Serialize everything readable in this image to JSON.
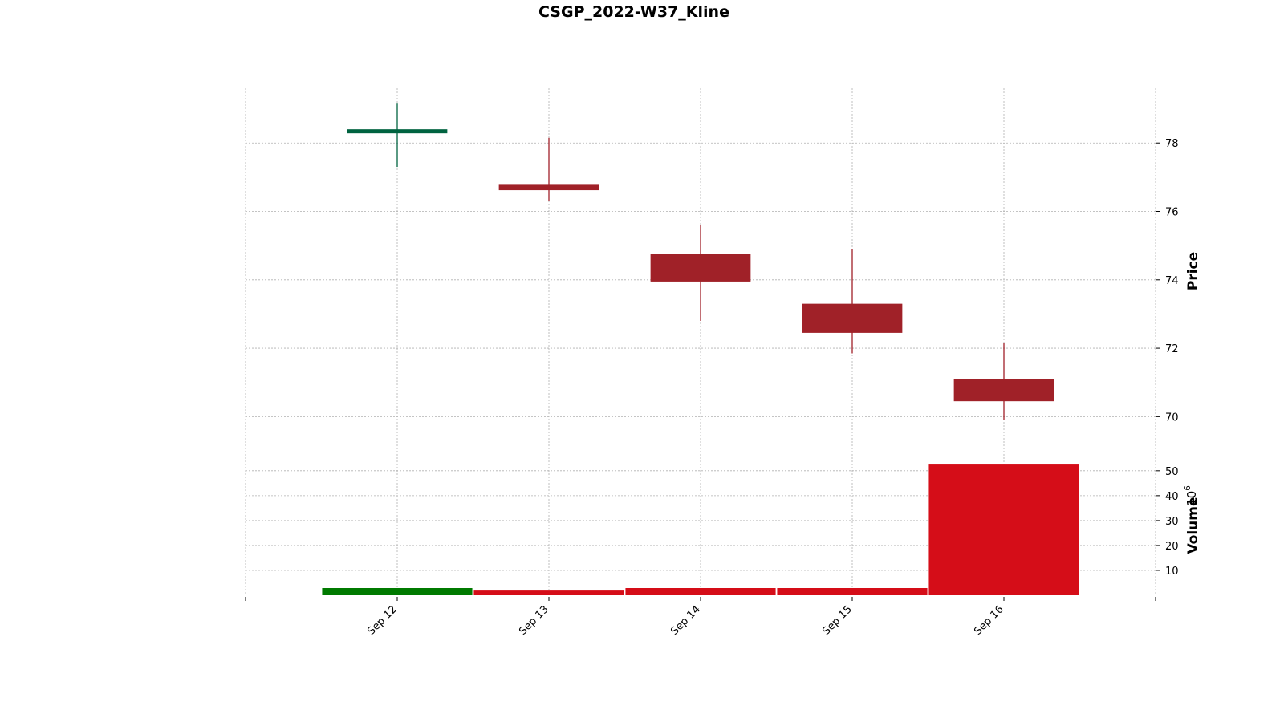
{
  "chart_data": {
    "type": "candlestick",
    "title": "CSGP_2022-W37_Kline",
    "categories": [
      "Sep 12",
      "Sep 13",
      "Sep 14",
      "Sep 15",
      "Sep 16"
    ],
    "ohlc": [
      {
        "date": "Sep 12",
        "open": 78.35,
        "high": 79.15,
        "low": 77.3,
        "close": 78.4
      },
      {
        "date": "Sep 13",
        "open": 76.8,
        "high": 78.15,
        "low": 76.3,
        "close": 76.62
      },
      {
        "date": "Sep 14",
        "open": 74.75,
        "high": 75.6,
        "low": 72.8,
        "close": 73.95
      },
      {
        "date": "Sep 15",
        "open": 73.3,
        "high": 74.9,
        "low": 71.85,
        "close": 72.45
      },
      {
        "date": "Sep 16",
        "open": 71.1,
        "high": 72.15,
        "low": 69.9,
        "close": 70.45
      }
    ],
    "volume": [
      2.9,
      1.9,
      2.9,
      2.9,
      52.5
    ],
    "price_axis": {
      "label": "Price",
      "ticks": [
        70,
        72,
        74,
        76,
        78
      ],
      "ylim": [
        69.0,
        79.6
      ]
    },
    "volume_axis": {
      "label": "Volume",
      "multiplier": "10",
      "exponent": "6",
      "ticks": [
        10,
        20,
        30,
        40,
        50
      ],
      "ylim": [
        0,
        58
      ]
    },
    "grid": true,
    "colors": {
      "up": "#006340",
      "down": "#a02128",
      "volume_up": "#007a00",
      "volume_down": "#d50d18"
    }
  }
}
